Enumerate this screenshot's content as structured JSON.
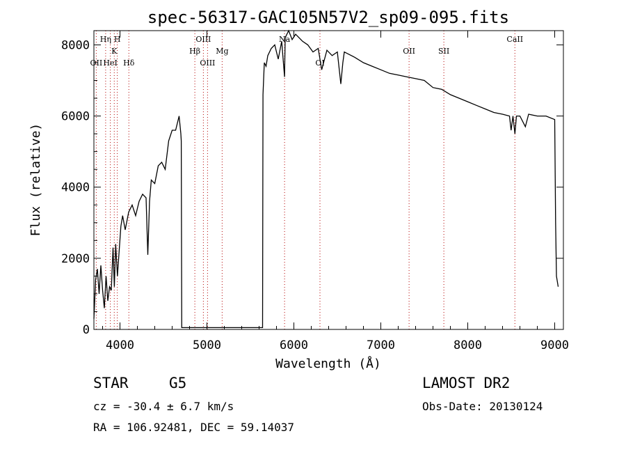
{
  "chart_data": {
    "type": "line",
    "title": "spec-56317-GAC105N57V2_sp09-095.fits",
    "xlabel": "Wavelength (Å)",
    "ylabel": "Flux (relative)",
    "xlim": [
      3700,
      9100
    ],
    "ylim": [
      0,
      8400
    ],
    "xticks": [
      4000,
      5000,
      6000,
      7000,
      8000,
      9000
    ],
    "yticks": [
      0,
      2000,
      4000,
      6000,
      8000
    ],
    "grid": false,
    "lines": [
      {
        "label": "OII",
        "x": 3727,
        "row": 3
      },
      {
        "label": "Hη",
        "x": 3835,
        "row": 1
      },
      {
        "label": "HeI",
        "x": 3889,
        "row": 3
      },
      {
        "label": "K",
        "x": 3934,
        "row": 2
      },
      {
        "label": "H",
        "x": 3969,
        "row": 1
      },
      {
        "label": "Hδ",
        "x": 4102,
        "row": 3
      },
      {
        "label": "Hβ",
        "x": 4861,
        "row": 2
      },
      {
        "label": "OIII",
        "x": 4959,
        "row": 1
      },
      {
        "label": "OIII",
        "x": 5007,
        "row": 3
      },
      {
        "label": "Mg",
        "x": 5175,
        "row": 2
      },
      {
        "label": "Na",
        "x": 5893,
        "row": 1
      },
      {
        "label": "OI",
        "x": 6300,
        "row": 3
      },
      {
        "label": "OII",
        "x": 7325,
        "row": 2
      },
      {
        "label": "SII",
        "x": 7725,
        "row": 2
      },
      {
        "label": "CaII",
        "x": 8542,
        "row": 1
      }
    ],
    "spectrum": {
      "x": [
        3700,
        3720,
        3740,
        3760,
        3780,
        3800,
        3820,
        3840,
        3860,
        3880,
        3900,
        3920,
        3935,
        3950,
        3970,
        3990,
        4010,
        4030,
        4060,
        4100,
        4140,
        4180,
        4220,
        4260,
        4300,
        4320,
        4340,
        4360,
        4400,
        4440,
        4480,
        4520,
        4560,
        4600,
        4640,
        4680,
        4700,
        4705,
        4710,
        5640,
        5645,
        5660,
        5680,
        5700,
        5740,
        5780,
        5820,
        5860,
        5893,
        5900,
        5940,
        5980,
        6020,
        6060,
        6100,
        6160,
        6220,
        6280,
        6320,
        6380,
        6440,
        6500,
        6540,
        6563,
        6580,
        6620,
        6700,
        6800,
        6900,
        7000,
        7100,
        7200,
        7300,
        7400,
        7500,
        7600,
        7700,
        7800,
        7900,
        8000,
        8100,
        8200,
        8300,
        8400,
        8480,
        8498,
        8520,
        8542,
        8560,
        8600,
        8662,
        8700,
        8800,
        8900,
        9000,
        9010,
        9020,
        9040
      ],
      "y": [
        300,
        1400,
        1700,
        1000,
        1800,
        1100,
        600,
        1500,
        800,
        1200,
        1100,
        2300,
        1200,
        2400,
        1500,
        2200,
        2900,
        3200,
        2800,
        3300,
        3500,
        3200,
        3600,
        3800,
        3700,
        2100,
        3600,
        4200,
        4100,
        4600,
        4700,
        4500,
        5300,
        5600,
        5600,
        6000,
        5500,
        5300,
        50,
        50,
        6600,
        7500,
        7400,
        7700,
        7900,
        8000,
        7600,
        8100,
        7100,
        8200,
        8400,
        8150,
        8300,
        8200,
        8100,
        8000,
        7800,
        7900,
        7300,
        7850,
        7700,
        7800,
        6900,
        7500,
        7800,
        7750,
        7650,
        7500,
        7400,
        7300,
        7200,
        7150,
        7100,
        7050,
        7000,
        6800,
        6750,
        6600,
        6500,
        6400,
        6300,
        6200,
        6100,
        6050,
        6000,
        5600,
        6000,
        5500,
        6000,
        6000,
        5700,
        6050,
        6000,
        6000,
        5900,
        3000,
        1500,
        1200
      ]
    }
  },
  "info": {
    "object_class": "STAR",
    "subclass": "G5",
    "survey": "LAMOST DR2",
    "cz": "cz = -30.4 ± 6.7 km/s",
    "obs_date": "Obs-Date: 20130124",
    "coords": "RA = 106.92481, DEC =  59.14037"
  }
}
